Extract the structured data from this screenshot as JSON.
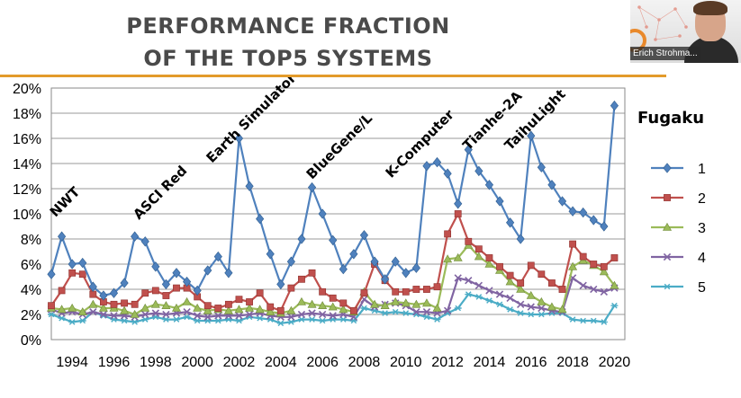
{
  "slide": {
    "title_line1": "PERFORMANCE FRACTION",
    "title_line2": "OF THE TOP5 SYSTEMS",
    "accent_color": "#e39b2b"
  },
  "video": {
    "presenter_name": "Erich Strohma..."
  },
  "chart_data": {
    "type": "line",
    "title": "",
    "xlabel": "",
    "ylabel": "",
    "ylim": [
      0,
      20
    ],
    "ytick_labels": [
      "0%",
      "2%",
      "4%",
      "6%",
      "8%",
      "10%",
      "12%",
      "14%",
      "16%",
      "18%",
      "20%"
    ],
    "xlim": [
      1993,
      2020.5
    ],
    "xtick_labels": [
      "1994",
      "1996",
      "1998",
      "2000",
      "2002",
      "2004",
      "2006",
      "2008",
      "2010",
      "2012",
      "2014",
      "2016",
      "2018",
      "2020"
    ],
    "grid": true,
    "legend_title": "Fugaku",
    "legend_position": "right",
    "x": [
      1993,
      1993.5,
      1994,
      1994.5,
      1995,
      1995.5,
      1996,
      1996.5,
      1997,
      1997.5,
      1998,
      1998.5,
      1999,
      1999.5,
      2000,
      2000.5,
      2001,
      2001.5,
      2002,
      2002.5,
      2003,
      2003.5,
      2004,
      2004.5,
      2005,
      2005.5,
      2006,
      2006.5,
      2007,
      2007.5,
      2008,
      2008.5,
      2009,
      2009.5,
      2010,
      2010.5,
      2011,
      2011.5,
      2012,
      2012.5,
      2013,
      2013.5,
      2014,
      2014.5,
      2015,
      2015.5,
      2016,
      2016.5,
      2017,
      2017.5,
      2018,
      2018.5,
      2019,
      2019.5,
      2020
    ],
    "series": [
      {
        "name": "1",
        "color": "#4f81bd",
        "marker": "diamond",
        "values": [
          5.2,
          8.2,
          6.0,
          6.1,
          4.2,
          3.5,
          3.7,
          4.5,
          8.2,
          7.8,
          5.8,
          4.4,
          5.3,
          4.6,
          3.9,
          5.5,
          6.6,
          5.3,
          16.0,
          12.2,
          9.6,
          6.8,
          4.4,
          6.2,
          8.0,
          12.1,
          10.0,
          7.9,
          5.6,
          6.8,
          8.3,
          6.2,
          4.8,
          6.2,
          5.3,
          5.7,
          13.8,
          14.1,
          13.2,
          10.8,
          15.1,
          13.4,
          12.3,
          11.0,
          9.3,
          8.0,
          16.2,
          13.7,
          12.3,
          11.0,
          10.2,
          10.1,
          9.5,
          9.0,
          18.6
        ]
      },
      {
        "name": "2",
        "color": "#c0504d",
        "marker": "square",
        "values": [
          2.7,
          3.9,
          5.3,
          5.2,
          3.6,
          3.0,
          2.8,
          2.9,
          2.8,
          3.7,
          3.9,
          3.5,
          4.1,
          4.1,
          3.4,
          2.7,
          2.5,
          2.8,
          3.2,
          3.0,
          3.7,
          2.6,
          2.3,
          4.1,
          4.8,
          5.3,
          3.8,
          3.3,
          2.9,
          2.3,
          3.7,
          6.0,
          4.7,
          3.8,
          3.8,
          4.0,
          4.0,
          4.2,
          8.4,
          10.0,
          7.8,
          7.2,
          6.5,
          5.8,
          5.1,
          4.5,
          5.9,
          5.2,
          4.5,
          4.0,
          7.6,
          6.6,
          6.0,
          5.8,
          6.5
        ]
      },
      {
        "name": "3",
        "color": "#9bbb59",
        "marker": "triangle",
        "values": [
          2.5,
          2.4,
          2.5,
          2.2,
          2.8,
          2.5,
          2.5,
          2.3,
          2.0,
          2.5,
          2.8,
          2.7,
          2.5,
          3.0,
          2.5,
          2.3,
          2.4,
          2.3,
          2.4,
          2.5,
          2.4,
          2.2,
          2.1,
          2.3,
          3.0,
          2.8,
          2.7,
          2.6,
          2.4,
          2.2,
          3.8,
          2.8,
          2.7,
          3.0,
          2.9,
          2.8,
          2.9,
          2.5,
          6.4,
          6.5,
          7.5,
          6.6,
          6.0,
          5.5,
          4.6,
          4.0,
          3.5,
          3.0,
          2.6,
          2.4,
          5.8,
          6.3,
          5.9,
          5.4,
          4.3
        ]
      },
      {
        "name": "4",
        "color": "#8064a2",
        "marker": "x",
        "values": [
          2.4,
          2.1,
          2.2,
          2.0,
          2.2,
          2.0,
          1.9,
          1.9,
          1.8,
          2.0,
          2.1,
          2.0,
          2.1,
          2.2,
          1.9,
          1.8,
          1.9,
          1.9,
          1.9,
          2.0,
          2.1,
          1.9,
          1.8,
          1.8,
          2.0,
          2.1,
          2.0,
          1.9,
          2.0,
          1.8,
          3.2,
          2.6,
          2.8,
          2.9,
          2.7,
          2.2,
          2.2,
          2.1,
          2.3,
          4.9,
          4.7,
          4.3,
          3.9,
          3.6,
          3.3,
          2.8,
          2.6,
          2.5,
          2.3,
          2.2,
          4.9,
          4.3,
          4.0,
          3.8,
          4.1
        ]
      },
      {
        "name": "5",
        "color": "#4bacc6",
        "marker": "star",
        "values": [
          2.0,
          1.7,
          1.4,
          1.5,
          2.2,
          1.9,
          1.6,
          1.5,
          1.4,
          1.6,
          1.8,
          1.6,
          1.6,
          1.8,
          1.5,
          1.5,
          1.5,
          1.6,
          1.5,
          1.8,
          1.7,
          1.6,
          1.3,
          1.4,
          1.6,
          1.6,
          1.5,
          1.6,
          1.6,
          1.5,
          2.5,
          2.3,
          2.1,
          2.2,
          2.1,
          2.0,
          1.8,
          1.6,
          2.1,
          2.5,
          3.6,
          3.4,
          3.1,
          2.8,
          2.4,
          2.1,
          2.0,
          2.0,
          2.1,
          2.1,
          1.6,
          1.5,
          1.5,
          1.4,
          2.7
        ]
      }
    ],
    "annotations": [
      {
        "text": "NWT",
        "x": 1993.2,
        "y": 9.7
      },
      {
        "text": "ASCI Red",
        "x": 1997.2,
        "y": 9.5
      },
      {
        "text": "Earth Simulator",
        "x": 2000.7,
        "y": 14.0
      },
      {
        "text": "BlueGene/L",
        "x": 2005.5,
        "y": 12.7
      },
      {
        "text": "K-Computer",
        "x": 2009.3,
        "y": 12.8
      },
      {
        "text": "Tianhe-2A",
        "x": 2013.0,
        "y": 15.0
      },
      {
        "text": "TaihuLight",
        "x": 2015.0,
        "y": 15.0
      }
    ]
  }
}
